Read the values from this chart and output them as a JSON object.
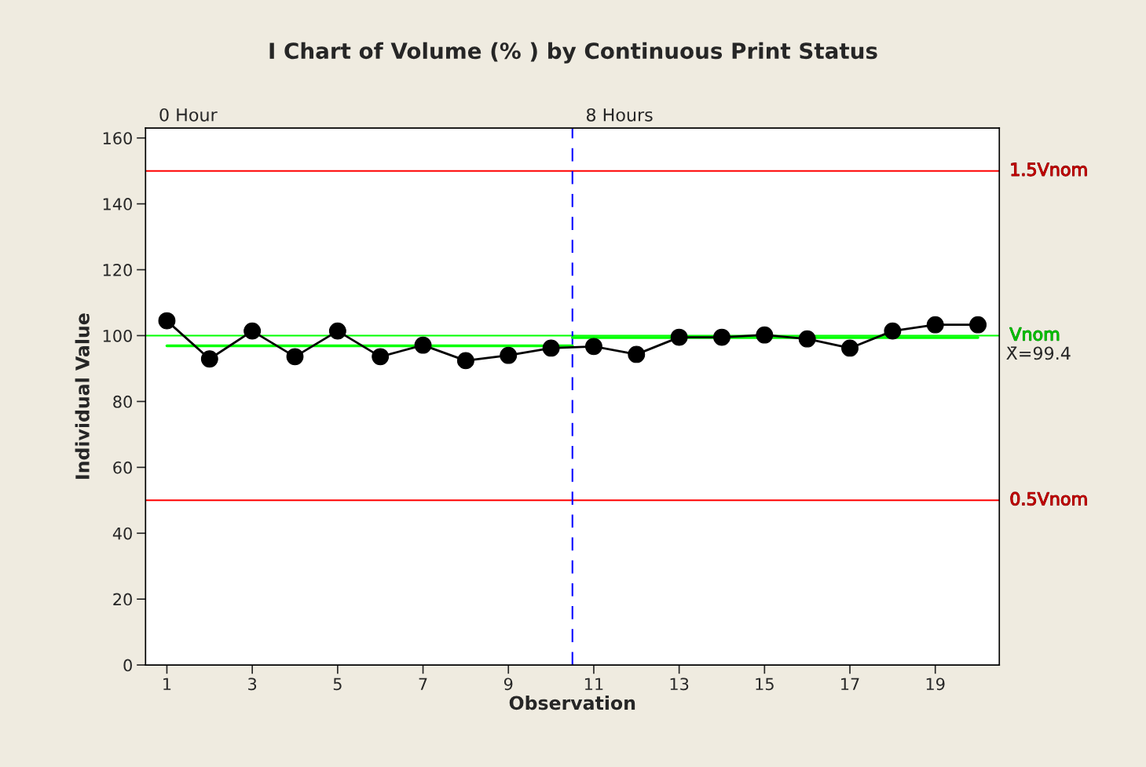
{
  "chart_data": {
    "type": "line",
    "title": "I Chart of Volume (% ) by Continuous Print Status",
    "xlabel": "Observation",
    "ylabel": "Individual Value",
    "x": [
      1,
      2,
      3,
      4,
      5,
      6,
      7,
      8,
      9,
      10,
      11,
      12,
      13,
      14,
      15,
      16,
      17,
      18,
      19,
      20
    ],
    "series": [
      {
        "color": "#000000",
        "marker": "circle",
        "values": [
          104.5,
          92.9,
          101.4,
          93.6,
          101.4,
          93.6,
          97.1,
          92.4,
          94.0,
          96.2,
          96.7,
          94.3,
          99.5,
          99.5,
          100.2,
          99.0,
          96.2,
          101.4,
          103.3,
          103.3
        ]
      },
      {
        "color": "#00ff00",
        "marker": "none",
        "x": [
          1,
          10.5
        ],
        "values": [
          96.9,
          96.9
        ]
      },
      {
        "color": "#00ff00",
        "marker": "none",
        "x": [
          10.5,
          20
        ],
        "values": [
          99.4,
          99.4
        ]
      }
    ],
    "xlim": [
      0.5,
      20.5
    ],
    "xticks": [
      1,
      3,
      5,
      7,
      9,
      11,
      13,
      15,
      17,
      19
    ],
    "ylim": [
      0,
      163
    ],
    "yticks": [
      0,
      20,
      40,
      60,
      80,
      100,
      120,
      140,
      160
    ],
    "ref_lines": [
      {
        "axis": "y",
        "value": 150,
        "label": "1.5Vnom",
        "color": "#ff0000"
      },
      {
        "axis": "y",
        "value": 100,
        "label": "Vnom",
        "color": "#00ff00"
      },
      {
        "axis": "y",
        "value": 50,
        "label": "0.5Vnom",
        "color": "#ff0000"
      },
      {
        "axis": "x",
        "value": 10.5,
        "color": "#0000ff",
        "line_style": "dashed"
      }
    ],
    "annotations": [
      "0 Hour",
      "8 Hours",
      {
        "text": "X̄=99.4",
        "x": 20.5,
        "y": 99.4
      }
    ],
    "grid": false,
    "legend": false
  }
}
